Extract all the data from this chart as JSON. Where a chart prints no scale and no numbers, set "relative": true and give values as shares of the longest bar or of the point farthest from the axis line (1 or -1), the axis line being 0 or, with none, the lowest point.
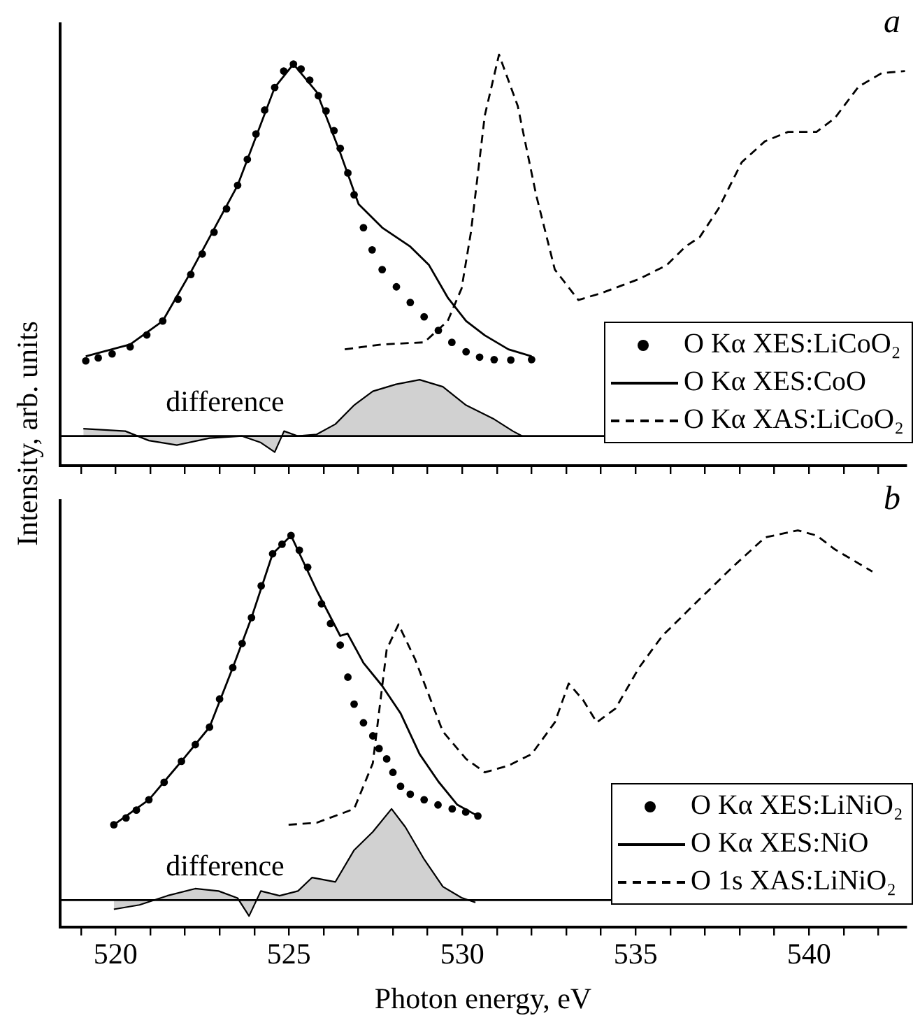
{
  "chart_data": [
    {
      "type": "line",
      "relative": true,
      "xlim": [
        518.4,
        542.8
      ],
      "xticks": [
        {
          "value": 519,
          "label": null
        },
        520,
        {
          "value": 521,
          "label": null
        },
        {
          "value": 522,
          "label": null
        },
        {
          "value": 523,
          "label": null
        },
        {
          "value": 524,
          "label": null
        },
        525,
        {
          "value": 526,
          "label": null
        },
        {
          "value": 527,
          "label": null
        },
        {
          "value": 528,
          "label": null
        },
        {
          "value": 529,
          "label": null
        },
        530,
        {
          "value": 531,
          "label": null
        },
        {
          "value": 532,
          "label": null
        },
        {
          "value": 533,
          "label": null
        },
        {
          "value": 534,
          "label": null
        },
        535,
        {
          "value": 536,
          "label": null
        },
        {
          "value": 537,
          "label": null
        },
        {
          "value": 538,
          "label": null
        },
        {
          "value": 539,
          "label": null
        },
        540,
        {
          "value": 541,
          "label": null
        },
        {
          "value": 542,
          "label": null
        }
      ],
      "tick_labels": false,
      "ylabel": "Intensity, arb. units",
      "legend": "bottom right",
      "annotations": [
        "a",
        "difference"
      ],
      "ref_lines": [
        {
          "axis": "y",
          "value": 0.072
        }
      ],
      "series": [
        {
          "name": "O Kα XES:LiCoO₂",
          "type": "scatter",
          "marker": "circle",
          "color": "#000000",
          "x": [
            519.14,
            519.5,
            519.9,
            520.42,
            520.9,
            521.36,
            521.8,
            522.17,
            522.5,
            522.84,
            523.2,
            523.52,
            523.8,
            524.05,
            524.3,
            524.59,
            524.85,
            525.13,
            525.35,
            525.6,
            525.85,
            526.07,
            526.3,
            526.48,
            526.7,
            526.88,
            527.15,
            527.4,
            527.69,
            528.1,
            528.5,
            528.9,
            529.31,
            529.7,
            530.11,
            530.5,
            530.92,
            531.4,
            532.0
          ],
          "values": [
            0.255,
            0.262,
            0.272,
            0.289,
            0.318,
            0.352,
            0.405,
            0.465,
            0.515,
            0.568,
            0.625,
            0.682,
            0.745,
            0.807,
            0.865,
            0.92,
            0.96,
            0.977,
            0.965,
            0.938,
            0.9,
            0.863,
            0.815,
            0.772,
            0.712,
            0.659,
            0.579,
            0.525,
            0.477,
            0.435,
            0.397,
            0.362,
            0.329,
            0.3,
            0.277,
            0.264,
            0.258,
            0.257,
            0.258
          ]
        },
        {
          "name": "O Kα XES:CoO",
          "line_style": "solid",
          "color": "#000000",
          "x": [
            519.14,
            520.42,
            521.36,
            522.17,
            523.52,
            524.59,
            525.13,
            525.8,
            526.48,
            527.01,
            527.69,
            528.5,
            529.04,
            529.58,
            530.11,
            530.65,
            531.33,
            532.0
          ],
          "values": [
            0.266,
            0.295,
            0.352,
            0.471,
            0.682,
            0.92,
            0.977,
            0.909,
            0.761,
            0.636,
            0.579,
            0.533,
            0.488,
            0.409,
            0.352,
            0.317,
            0.283,
            0.266
          ]
        },
        {
          "name": "O Kα XAS:LiCoO₂",
          "line_style": "dashed",
          "color": "#000000",
          "x": [
            526.61,
            527.69,
            528.9,
            529.58,
            529.98,
            530.25,
            530.65,
            531.06,
            531.6,
            532.13,
            532.67,
            533.35,
            534.02,
            535.1,
            535.9,
            536.44,
            536.85,
            537.39,
            538.06,
            538.73,
            539.4,
            540.22,
            540.75,
            541.43,
            542.1,
            542.77
          ],
          "values": [
            0.283,
            0.295,
            0.3,
            0.352,
            0.431,
            0.568,
            0.852,
            1.0,
            0.875,
            0.659,
            0.477,
            0.403,
            0.42,
            0.454,
            0.488,
            0.533,
            0.556,
            0.625,
            0.738,
            0.789,
            0.812,
            0.812,
            0.846,
            0.922,
            0.955,
            0.96
          ]
        },
        {
          "type": "area",
          "color": "#000000",
          "x": [
            519.07,
            520.28,
            520.96,
            521.77,
            522.71,
            523.65,
            524.19,
            524.59,
            524.86,
            525.26,
            525.8,
            526.34,
            526.88,
            527.42,
            528.09,
            528.77,
            529.44,
            530.11,
            530.92,
            531.46,
            531.73
          ],
          "values": [
            0.09,
            0.084,
            0.061,
            0.05,
            0.067,
            0.072,
            0.056,
            0.033,
            0.084,
            0.072,
            0.076,
            0.101,
            0.147,
            0.181,
            0.198,
            0.209,
            0.192,
            0.147,
            0.113,
            0.084,
            0.072
          ]
        }
      ]
    },
    {
      "type": "line",
      "relative": true,
      "xlim": [
        518.4,
        542.8
      ],
      "xticks": [
        {
          "value": 519,
          "label": null
        },
        520,
        {
          "value": 521,
          "label": null
        },
        {
          "value": 522,
          "label": null
        },
        {
          "value": 523,
          "label": null
        },
        {
          "value": 524,
          "label": null
        },
        525,
        {
          "value": 526,
          "label": null
        },
        {
          "value": 527,
          "label": null
        },
        {
          "value": 528,
          "label": null
        },
        {
          "value": 529,
          "label": null
        },
        530,
        {
          "value": 531,
          "label": null
        },
        {
          "value": 532,
          "label": null
        },
        {
          "value": 533,
          "label": null
        },
        {
          "value": 534,
          "label": null
        },
        535,
        {
          "value": 536,
          "label": null
        },
        {
          "value": 537,
          "label": null
        },
        {
          "value": 538,
          "label": null
        },
        {
          "value": 539,
          "label": null
        },
        540,
        {
          "value": 541,
          "label": null
        },
        {
          "value": 542,
          "label": null
        }
      ],
      "tick_labels": "x",
      "xlabel": "Photon energy, eV",
      "legend": "bottom right",
      "annotations": [
        "b",
        "difference"
      ],
      "ref_lines": [
        {
          "axis": "y",
          "value": 0.068
        }
      ],
      "series": [
        {
          "name": "O Kα XES:LiNiO₂",
          "type": "scatter",
          "marker": "circle",
          "color": "#000000",
          "x": [
            519.95,
            520.3,
            520.6,
            520.96,
            521.4,
            521.9,
            522.3,
            522.71,
            523.0,
            523.38,
            523.65,
            523.92,
            524.2,
            524.53,
            524.8,
            525.06,
            525.3,
            525.54,
            525.94,
            526.2,
            526.48,
            526.7,
            526.88,
            527.15,
            527.42,
            527.6,
            527.82,
            528.0,
            528.22,
            528.5,
            528.9,
            529.3,
            529.71,
            530.1,
            530.45
          ],
          "values": [
            0.258,
            0.275,
            0.295,
            0.321,
            0.365,
            0.418,
            0.46,
            0.504,
            0.575,
            0.654,
            0.715,
            0.78,
            0.86,
            0.941,
            0.965,
            0.987,
            0.95,
            0.907,
            0.815,
            0.765,
            0.711,
            0.63,
            0.562,
            0.515,
            0.482,
            0.45,
            0.424,
            0.39,
            0.355,
            0.335,
            0.321,
            0.308,
            0.298,
            0.29,
            0.28
          ]
        },
        {
          "name": "O Kα XES:NiO",
          "line_style": "solid",
          "color": "#000000",
          "x": [
            519.95,
            520.96,
            521.9,
            522.71,
            523.38,
            523.92,
            524.53,
            525.06,
            525.8,
            526.48,
            526.69,
            527.15,
            527.69,
            528.22,
            528.77,
            529.31,
            529.85,
            530.45
          ],
          "values": [
            0.258,
            0.321,
            0.418,
            0.504,
            0.654,
            0.78,
            0.941,
            0.987,
            0.849,
            0.734,
            0.74,
            0.666,
            0.608,
            0.539,
            0.436,
            0.367,
            0.309,
            0.28
          ]
        },
        {
          "name": "O 1s XAS:LiNiO₂",
          "line_style": "dashed",
          "color": "#000000",
          "x": [
            524.99,
            525.8,
            526.88,
            527.42,
            527.82,
            528.16,
            528.63,
            529.44,
            530.11,
            530.65,
            531.33,
            532.0,
            532.67,
            533.07,
            533.48,
            533.88,
            534.42,
            535.1,
            535.77,
            536.71,
            537.79,
            538.73,
            539.68,
            540.22,
            540.75,
            541.83
          ],
          "values": [
            0.258,
            0.263,
            0.298,
            0.413,
            0.7,
            0.763,
            0.677,
            0.493,
            0.424,
            0.39,
            0.407,
            0.436,
            0.516,
            0.614,
            0.573,
            0.516,
            0.551,
            0.654,
            0.734,
            0.815,
            0.907,
            0.982,
            1.0,
            0.987,
            0.952,
            0.896
          ]
        },
        {
          "type": "area",
          "color": "#000000",
          "x": [
            519.95,
            520.69,
            521.49,
            522.3,
            522.97,
            523.52,
            523.85,
            524.19,
            524.73,
            525.26,
            525.67,
            526.34,
            526.88,
            527.42,
            527.96,
            528.36,
            528.9,
            529.44,
            529.98,
            530.38
          ],
          "values": [
            0.045,
            0.056,
            0.079,
            0.097,
            0.091,
            0.073,
            0.028,
            0.091,
            0.079,
            0.091,
            0.125,
            0.114,
            0.194,
            0.24,
            0.298,
            0.252,
            0.171,
            0.102,
            0.074,
            0.062
          ]
        }
      ]
    }
  ]
}
